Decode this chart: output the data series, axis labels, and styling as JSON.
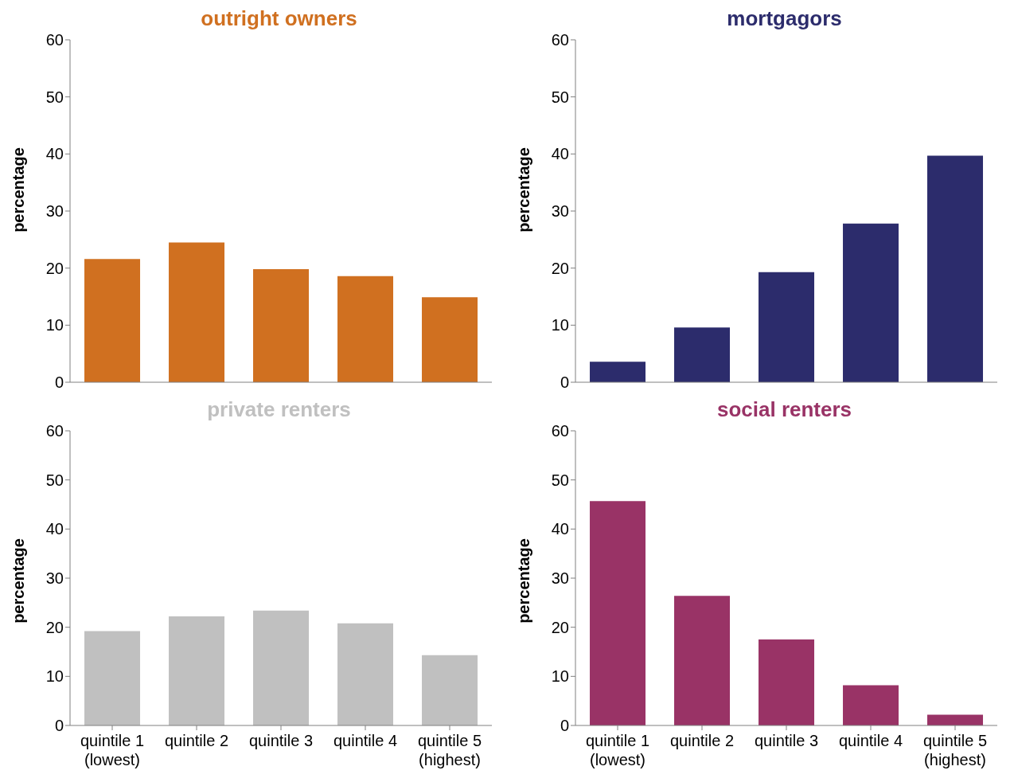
{
  "chart_data": [
    {
      "type": "bar",
      "title": "outright owners",
      "ylabel": "percentage",
      "categories": [
        null,
        null,
        null,
        null,
        null
      ],
      "series": [
        {
          "color": "#d07020",
          "values": [
            21.6,
            24.5,
            19.8,
            18.6,
            14.9
          ]
        }
      ],
      "ylim": [
        0,
        60
      ],
      "yticks": [
        0,
        10,
        20,
        30,
        40,
        50,
        60
      ],
      "tick_labels": "y"
    },
    {
      "type": "bar",
      "title": "mortgagors",
      "ylabel": "percentage",
      "categories": [
        null,
        null,
        null,
        null,
        null
      ],
      "series": [
        {
          "color": "#2c2c6c",
          "values": [
            3.6,
            9.6,
            19.3,
            27.8,
            39.7
          ]
        }
      ],
      "ylim": [
        0,
        60
      ],
      "yticks": [
        0,
        10,
        20,
        30,
        40,
        50,
        60
      ],
      "tick_labels": "y"
    },
    {
      "type": "bar",
      "title": "private renters",
      "ylabel": "percentage",
      "categories": [
        "quintile 1\n(lowest)",
        "quintile 2",
        "quintile 3",
        "quintile 4",
        "quintile 5\n(highest)"
      ],
      "series": [
        {
          "color": "#c0c0c0",
          "values": [
            19.2,
            22.2,
            23.4,
            20.8,
            14.3
          ]
        }
      ],
      "ylim": [
        0,
        60
      ],
      "yticks": [
        0,
        10,
        20,
        30,
        40,
        50,
        60
      ]
    },
    {
      "type": "bar",
      "title": "social renters",
      "ylabel": "percentage",
      "categories": [
        "quintile 1\n(lowest)",
        "quintile 2",
        "quintile 3",
        "quintile 4",
        "quintile 5\n(highest)"
      ],
      "series": [
        {
          "color": "#993366",
          "values": [
            45.7,
            26.4,
            17.5,
            8.2,
            2.2
          ]
        }
      ],
      "ylim": [
        0,
        60
      ],
      "yticks": [
        0,
        10,
        20,
        30,
        40,
        50,
        60
      ]
    }
  ]
}
